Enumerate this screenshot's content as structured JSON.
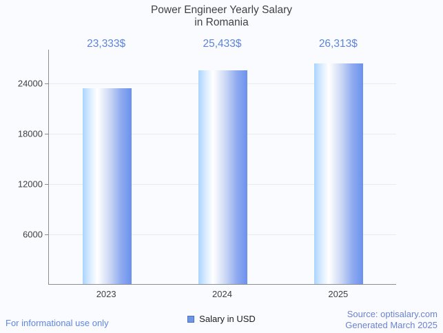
{
  "title": "Power Engineer Yearly Salary\nin Romania",
  "legend": {
    "label": "Salary in USD",
    "marker_color": "#6f96e0",
    "marker_border": "#4a6fbf"
  },
  "footer": {
    "left_note": "For informational use only",
    "source_line1": "Source: optisalary.com",
    "source_line2": "Generated March 2025"
  },
  "colors": {
    "background": "#fafbfe",
    "title_text": "#3f4245",
    "value_label": "#5d83dd",
    "axis_text": "#3d4043",
    "axis_line": "#8c8c8c",
    "gridline": "#e8eaec",
    "footer_left": "#5d86e2",
    "footer_right": "#6b82cf",
    "bar_gradient_left": "#a9d4fe",
    "bar_gradient_mid": "#ffffff",
    "bar_gradient_right": "#6b91ee"
  },
  "chart_data": {
    "type": "bar",
    "title": "Power Engineer Yearly Salary in Romania",
    "categories": [
      "2023",
      "2024",
      "2025"
    ],
    "series": [
      {
        "name": "Salary in USD",
        "values": [
          23333,
          25433,
          26313
        ]
      }
    ],
    "value_labels": [
      "23,333$",
      "25,433$",
      "26,313$"
    ],
    "yticks": [
      6000,
      12000,
      18000,
      24000
    ],
    "ylim": [
      0,
      28000
    ],
    "xlabel": "",
    "ylabel": "",
    "grid": true,
    "legend_position": "bottom"
  }
}
